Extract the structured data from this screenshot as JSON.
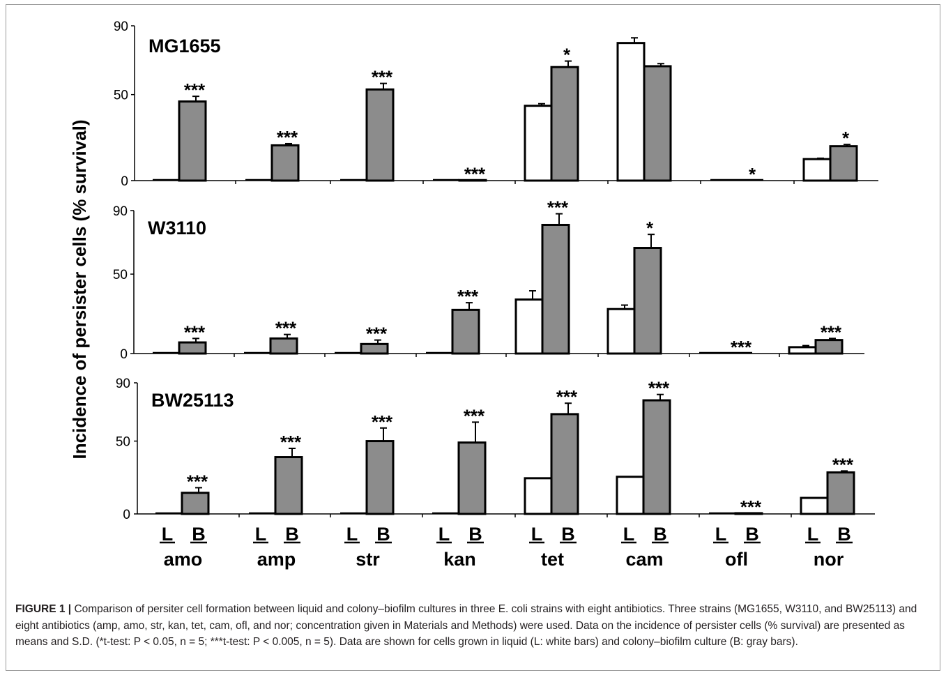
{
  "chart_data": {
    "type": "bar",
    "ylabel": "Incidence of persister cells (% survival)",
    "yticks": [
      0,
      50,
      90
    ],
    "ylim": [
      0,
      90
    ],
    "group_labels": [
      "amo",
      "amp",
      "str",
      "kan",
      "tet",
      "cam",
      "ofl",
      "nor"
    ],
    "bar_labels": [
      "L",
      "B"
    ],
    "colors": {
      "L": "#ffffff",
      "B": "#8c8c8c"
    },
    "panels": [
      {
        "strain": "MG1655",
        "groups": [
          {
            "L": 0,
            "B": 46,
            "Lerr": 0,
            "Berr": 3,
            "sig": "***"
          },
          {
            "L": 0,
            "B": 20.5,
            "Lerr": 0,
            "Berr": 1,
            "sig": "***"
          },
          {
            "L": 0,
            "B": 53,
            "Lerr": 0,
            "Berr": 3.5,
            "sig": "***"
          },
          {
            "L": 0,
            "B": 0.3,
            "Lerr": 0,
            "Berr": 0,
            "sig": "***"
          },
          {
            "L": 43.5,
            "B": 66,
            "Lerr": 1.2,
            "Berr": 3.5,
            "sig": "*"
          },
          {
            "L": 80,
            "B": 66.5,
            "Lerr": 3,
            "Berr": 1.5,
            "sig": ""
          },
          {
            "L": 0,
            "B": 0.1,
            "Lerr": 0,
            "Berr": 0,
            "sig": "*"
          },
          {
            "L": 12.5,
            "B": 20,
            "Lerr": 0.5,
            "Berr": 1,
            "sig": "*"
          }
        ]
      },
      {
        "strain": "W3110",
        "groups": [
          {
            "L": 0,
            "B": 7,
            "Lerr": 0,
            "Berr": 2.5,
            "sig": "***"
          },
          {
            "L": 0,
            "B": 9.5,
            "Lerr": 0,
            "Berr": 2.5,
            "sig": "***"
          },
          {
            "L": 0,
            "B": 6,
            "Lerr": 0,
            "Berr": 2.5,
            "sig": "***"
          },
          {
            "L": 0,
            "B": 27.5,
            "Lerr": 0,
            "Berr": 4.5,
            "sig": "***"
          },
          {
            "L": 34,
            "B": 81,
            "Lerr": 5.5,
            "Berr": 7,
            "sig": "***"
          },
          {
            "L": 28,
            "B": 66.5,
            "Lerr": 2.5,
            "Berr": 8.5,
            "sig": "*"
          },
          {
            "L": 0,
            "B": 0,
            "Lerr": 0,
            "Berr": 0,
            "sig": "***"
          },
          {
            "L": 4,
            "B": 8.5,
            "Lerr": 1,
            "Berr": 1,
            "sig": "***"
          }
        ]
      },
      {
        "strain": "BW25113",
        "groups": [
          {
            "L": 0,
            "B": 14.5,
            "Lerr": 0,
            "Berr": 3.5,
            "sig": "***"
          },
          {
            "L": 0,
            "B": 39,
            "Lerr": 0,
            "Berr": 6,
            "sig": "***"
          },
          {
            "L": 0,
            "B": 50,
            "Lerr": 0,
            "Berr": 9,
            "sig": "***"
          },
          {
            "L": 0,
            "B": 49,
            "Lerr": 0,
            "Berr": 14,
            "sig": "***"
          },
          {
            "L": 24.5,
            "B": 68.5,
            "Lerr": 0,
            "Berr": 7.5,
            "sig": "***"
          },
          {
            "L": 25.5,
            "B": 78,
            "Lerr": 0,
            "Berr": 4,
            "sig": "***"
          },
          {
            "L": 0,
            "B": 0.5,
            "Lerr": 0,
            "Berr": 0,
            "sig": "***"
          },
          {
            "L": 11,
            "B": 28.5,
            "Lerr": 0,
            "Berr": 1,
            "sig": "***"
          }
        ]
      }
    ]
  },
  "caption": {
    "lead": "FIGURE 1 |",
    "text": " Comparison of persiter cell formation between liquid and colony–biofilm cultures in three E. coli strains with eight antibiotics. Three strains (MG1655, W3110, and BW25113) and eight antibiotics (amp, amo, str, kan, tet, cam, ofl, and nor; concentration given in Materials and Methods) were used. Data on the incidence of persister cells (% survival) are presented as means and S.D. (*t-test: P < 0.05, n = 5; ***t-test: P < 0.005, n = 5). Data are shown for cells grown in liquid (L: white bars) and colony–biofilm culture (B: gray bars)."
  }
}
